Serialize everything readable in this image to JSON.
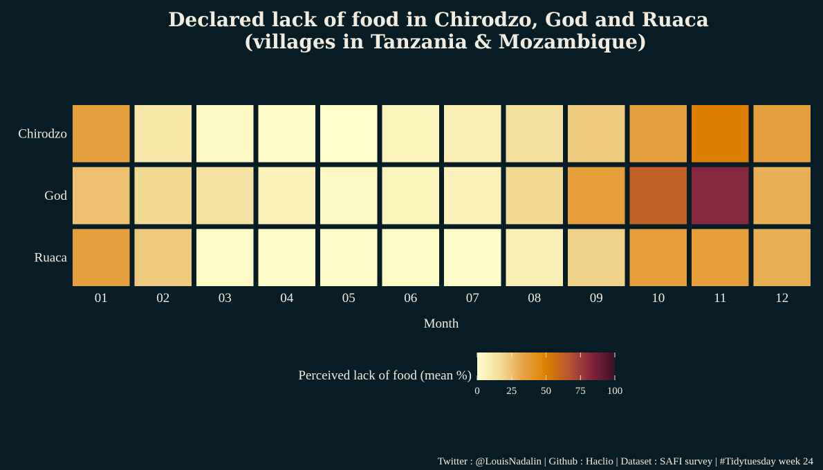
{
  "chart_data": {
    "type": "heatmap",
    "title_lines": [
      "Declared lack of food in Chirodzo, God and Ruaca",
      "(villages in Tanzania & Mozambique)"
    ],
    "xlabel": "Month",
    "ylabel": "",
    "x_categories": [
      "01",
      "02",
      "03",
      "04",
      "05",
      "06",
      "07",
      "08",
      "09",
      "10",
      "11",
      "12"
    ],
    "y_categories": [
      "Chirodzo",
      "God",
      "Ruaca"
    ],
    "values": [
      [
        35,
        12,
        3,
        1,
        0,
        5,
        8,
        15,
        22,
        35,
        50,
        35
      ],
      [
        25,
        18,
        14,
        7,
        3,
        5,
        6,
        18,
        36,
        62,
        82,
        30
      ],
      [
        35,
        22,
        2,
        1,
        1,
        2,
        1,
        8,
        20,
        36,
        36,
        30
      ]
    ],
    "colorbar": {
      "title": "Perceived lack of food (mean %)",
      "min": 0,
      "max": 100,
      "ticks": [
        "0",
        "25",
        "50",
        "75",
        "100"
      ],
      "colors": [
        "#ffffcc",
        "#f2dc9a",
        "#e6a444",
        "#dd8000",
        "#b85533",
        "#82243e",
        "#3a1025"
      ]
    },
    "caption": "Twitter : @LouisNadalin | Github : Haclio | Dataset : SAFI survey | #Tidytuesday week 24",
    "background": "#071c25"
  }
}
